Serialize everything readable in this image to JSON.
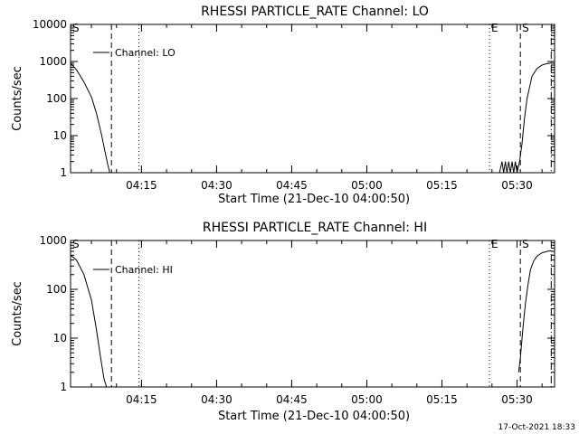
{
  "chart_data": [
    {
      "type": "line",
      "title": "RHESSI PARTICLE_RATE Channel: LO",
      "xlabel": "Start Time (21-Dec-10 04:00:50)",
      "ylabel": "Counts/sec",
      "legend": {
        "label": "Channel: LO",
        "placement": "top-left"
      },
      "x_ticks": [
        "04:15",
        "04:30",
        "04:45",
        "05:00",
        "05:15",
        "05:30"
      ],
      "y_ticks": [
        "1",
        "10",
        "100",
        "1000",
        "10000"
      ],
      "y_scale": "log",
      "xlim": [
        "04:00:50",
        "05:37:30"
      ],
      "ylim": [
        1,
        10000
      ],
      "markers": [
        {
          "label": "S",
          "time": "04:00:50",
          "style": "dashed"
        },
        {
          "label": "",
          "time": "04:09:00",
          "style": "dashed"
        },
        {
          "label": "",
          "time": "04:14:30",
          "style": "dotted"
        },
        {
          "label": "E",
          "time": "05:24:30",
          "style": "dotted"
        },
        {
          "label": "S",
          "time": "05:30:40",
          "style": "dashed"
        },
        {
          "label": "",
          "time": "05:36:50",
          "style": "dashdot"
        }
      ],
      "series": [
        {
          "x": [
            "04:00:50",
            "04:02:00",
            "04:03:30",
            "04:05:00",
            "04:06:00",
            "04:07:00",
            "04:07:40",
            "04:08:20",
            "04:08:40",
            "05:26:30",
            "05:27:00",
            "05:27:20",
            "05:27:40",
            "05:28:00",
            "05:28:20",
            "05:28:40",
            "05:29:00",
            "05:29:20",
            "05:29:40",
            "05:30:00",
            "05:30:30",
            "05:31:00",
            "05:31:30",
            "05:32:00",
            "05:32:30",
            "05:33:00",
            "05:34:00",
            "05:35:00",
            "05:36:00",
            "05:36:50"
          ],
          "y": [
            900,
            600,
            280,
            110,
            40,
            11,
            4,
            1.5,
            1,
            1,
            2,
            1,
            2,
            1,
            2,
            1,
            2,
            1,
            2,
            1,
            2,
            6,
            30,
            100,
            200,
            400,
            650,
            800,
            880,
            900
          ]
        }
      ]
    },
    {
      "type": "line",
      "title": "RHESSI PARTICLE_RATE Channel: HI",
      "xlabel": "Start Time (21-Dec-10 04:00:50)",
      "ylabel": "Counts/sec",
      "legend": {
        "label": "Channel: HI",
        "placement": "top-left"
      },
      "x_ticks": [
        "04:15",
        "04:30",
        "04:45",
        "05:00",
        "05:15",
        "05:30"
      ],
      "y_ticks": [
        "1",
        "10",
        "100",
        "1000"
      ],
      "y_scale": "log",
      "xlim": [
        "04:00:50",
        "05:37:30"
      ],
      "ylim": [
        1,
        1000
      ],
      "markers": [
        {
          "label": "S",
          "time": "04:00:50",
          "style": "dashed"
        },
        {
          "label": "",
          "time": "04:09:00",
          "style": "dashed"
        },
        {
          "label": "",
          "time": "04:14:30",
          "style": "dotted"
        },
        {
          "label": "E",
          "time": "05:24:30",
          "style": "dotted"
        },
        {
          "label": "S",
          "time": "05:30:40",
          "style": "dashed"
        },
        {
          "label": "",
          "time": "05:36:50",
          "style": "dashdot"
        }
      ],
      "series": [
        {
          "x": [
            "04:00:50",
            "04:02:00",
            "04:03:30",
            "04:05:00",
            "04:06:00",
            "04:06:50",
            "04:07:30",
            "04:08:00",
            "05:30:20",
            "05:30:40",
            "05:31:10",
            "05:31:40",
            "05:32:10",
            "05:32:40",
            "05:33:20",
            "05:34:00",
            "05:35:00",
            "05:36:00",
            "05:36:50"
          ],
          "y": [
            500,
            400,
            200,
            60,
            15,
            4,
            1.5,
            1,
            2,
            4,
            15,
            50,
            120,
            250,
            380,
            480,
            560,
            600,
            620
          ]
        }
      ]
    }
  ],
  "footer": {
    "date": "17-Oct-2021 18:33"
  }
}
